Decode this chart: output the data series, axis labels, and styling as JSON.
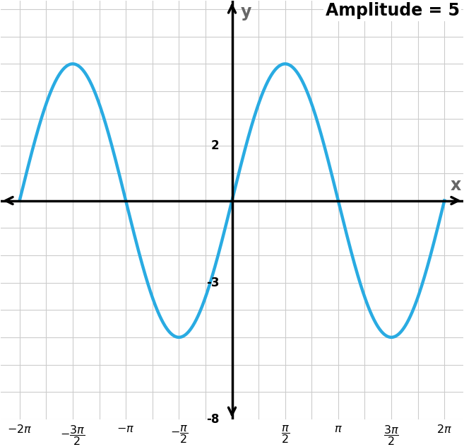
{
  "amplitude": 5,
  "x_min": -6.2831853,
  "x_max": 6.2831853,
  "y_min": -8,
  "y_max": 7,
  "line_color": "#29ABE2",
  "line_width": 3.2,
  "grid_color": "#CCCCCC",
  "background_color": "#FFFFFF",
  "axis_color": "#000000",
  "title_text": "Amplitude = 5",
  "title_fontsize": 17,
  "x_label": "x",
  "y_label": "y",
  "label_color": "#666666",
  "tick_values_x": [
    -6.2831853,
    -4.712389,
    -3.1415927,
    -1.5707963,
    1.5707963,
    3.1415927,
    4.712389,
    6.2831853
  ],
  "y_tick_labels": [
    "2",
    "-3",
    "-8"
  ],
  "y_tick_values": [
    2,
    -3,
    -8
  ],
  "figsize": [
    6.57,
    6.32
  ],
  "dpi": 100
}
